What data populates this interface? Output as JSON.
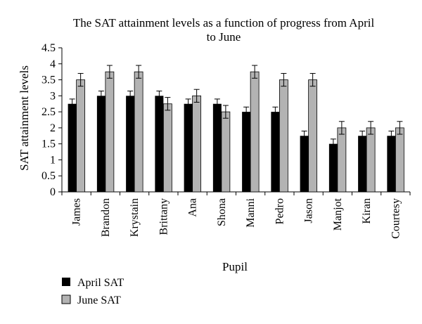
{
  "chart_data": {
    "type": "bar",
    "title": "The SAT attainment levels as a function of progress from April to June",
    "title_lines": [
      "The SAT attainment levels as a function of progress from April",
      "to June"
    ],
    "xlabel": "Pupil",
    "ylabel": "SAT attainment levels",
    "ylim": [
      0,
      4.5
    ],
    "yticks": [
      "0",
      "0.5",
      "1",
      "1.5",
      "2",
      "2.5",
      "3",
      "3.5",
      "4",
      "4.5"
    ],
    "grid": false,
    "legend_position": "bottom-left",
    "categories": [
      "James",
      "Brandon",
      "Krystain",
      "Brittany",
      "Ana",
      "Shona",
      "Manni",
      "Pedro",
      "Jason",
      "Manjot",
      "Kiran",
      "Courtesy"
    ],
    "series": [
      {
        "name": "April SAT",
        "color": "#000000",
        "values": [
          2.75,
          3,
          3,
          3,
          2.75,
          2.75,
          2.5,
          2.5,
          1.75,
          1.5,
          1.75,
          1.75
        ],
        "error": [
          0.15,
          0.15,
          0.15,
          0.15,
          0.15,
          0.15,
          0.15,
          0.15,
          0.15,
          0.15,
          0.15,
          0.15
        ]
      },
      {
        "name": "June SAT",
        "color": "#b3b3b3",
        "values": [
          3.5,
          3.75,
          3.75,
          2.75,
          3,
          2.5,
          3.75,
          3.5,
          3.5,
          2,
          2,
          2
        ],
        "error": [
          0.2,
          0.2,
          0.2,
          0.2,
          0.2,
          0.2,
          0.2,
          0.2,
          0.2,
          0.2,
          0.2,
          0.2
        ]
      }
    ]
  }
}
